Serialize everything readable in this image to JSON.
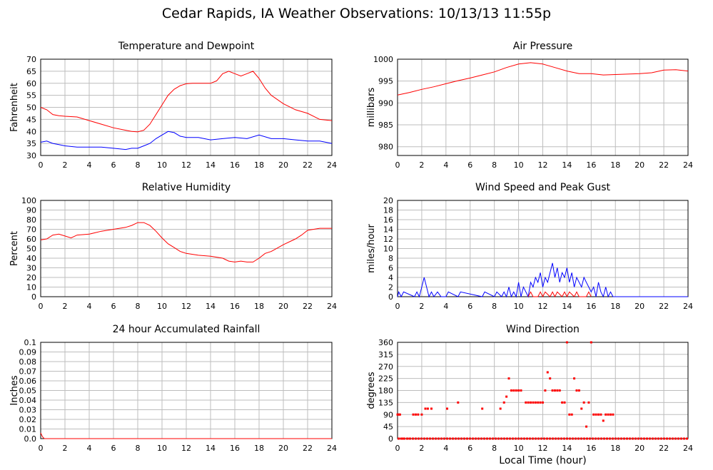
{
  "page_title": "Cedar Rapids, IA Weather Observations: 10/13/13 11:55p",
  "x_axis_label": "Local Time (hour)",
  "colors": {
    "red": "#ff0000",
    "blue": "#0000ff",
    "grid": "#bdbdbd"
  },
  "chart_data": [
    {
      "id": "temp",
      "type": "line",
      "title": "Temperature and Dewpoint",
      "ylabel": "Fahrenheit",
      "xlabel": "",
      "xlim": [
        0,
        24
      ],
      "ylim": [
        30,
        70
      ],
      "x_ticks": [
        "0",
        "2",
        "4",
        "6",
        "8",
        "10",
        "12",
        "14",
        "16",
        "18",
        "20",
        "22",
        "24"
      ],
      "y_ticks": [
        "30",
        "35",
        "40",
        "45",
        "50",
        "55",
        "60",
        "65",
        "70"
      ],
      "series": [
        {
          "color": "#ff0000",
          "x": [
            0,
            0.5,
            1,
            1.5,
            2,
            3,
            4,
            5,
            6,
            7,
            7.5,
            8,
            8.5,
            9,
            9.5,
            10,
            10.5,
            11,
            11.5,
            12,
            12.5,
            13,
            14,
            14.5,
            15,
            15.5,
            16,
            16.5,
            17,
            17.5,
            18,
            18.5,
            19,
            20,
            21,
            22,
            23,
            24
          ],
          "y": [
            50,
            49,
            47,
            46.5,
            46.3,
            46,
            44.5,
            43,
            41.5,
            40.5,
            40,
            39.8,
            40.5,
            43,
            47,
            51,
            55,
            57.5,
            59,
            59.8,
            60,
            60,
            60,
            61,
            64,
            65,
            64,
            63,
            64,
            65,
            62,
            58,
            55,
            51.5,
            49,
            47.5,
            45,
            44.5
          ]
        },
        {
          "color": "#0000ff",
          "x": [
            0,
            0.5,
            1,
            1.5,
            2,
            3,
            4,
            5,
            6,
            7,
            7.5,
            8,
            8.5,
            9,
            9.5,
            10,
            10.5,
            11,
            11.5,
            12,
            13,
            14,
            15,
            16,
            17,
            18,
            19,
            20,
            21,
            22,
            23,
            24
          ],
          "y": [
            35.5,
            36,
            35,
            34.5,
            34,
            33.5,
            33.5,
            33.5,
            33,
            32.5,
            33,
            33,
            34,
            35,
            37,
            38.5,
            40,
            39.5,
            38,
            37.5,
            37.5,
            36.5,
            37,
            37.5,
            37,
            38.5,
            37,
            37,
            36.5,
            36,
            36,
            35
          ]
        }
      ]
    },
    {
      "id": "pressure",
      "type": "line",
      "title": "Air Pressure",
      "ylabel": "millibars",
      "xlabel": "",
      "xlim": [
        0,
        24
      ],
      "ylim": [
        978,
        1000
      ],
      "x_ticks": [
        "0",
        "2",
        "4",
        "6",
        "8",
        "10",
        "12",
        "14",
        "16",
        "18",
        "20",
        "22",
        "24"
      ],
      "y_ticks": [
        "980",
        "985",
        "990",
        "995",
        "1000"
      ],
      "y_tick_values": [
        980,
        985,
        990,
        995,
        1000
      ],
      "series": [
        {
          "color": "#ff0000",
          "x": [
            0,
            1,
            2,
            3,
            4,
            5,
            6,
            7,
            8,
            9,
            10,
            11,
            12,
            13,
            14,
            15,
            16,
            17,
            18,
            19,
            20,
            21,
            22,
            23,
            24
          ],
          "y": [
            991.8,
            992.4,
            993.1,
            993.7,
            994.4,
            995.1,
            995.7,
            996.4,
            997.1,
            998.1,
            998.9,
            999.2,
            998.9,
            998.1,
            997.3,
            996.7,
            996.7,
            996.4,
            996.5,
            996.6,
            996.7,
            996.9,
            997.5,
            997.6,
            997.3
          ]
        }
      ]
    },
    {
      "id": "humidity",
      "type": "line",
      "title": "Relative Humidity",
      "ylabel": "Percent",
      "xlabel": "",
      "xlim": [
        0,
        24
      ],
      "ylim": [
        0,
        100
      ],
      "x_ticks": [
        "0",
        "2",
        "4",
        "6",
        "8",
        "10",
        "12",
        "14",
        "16",
        "18",
        "20",
        "22",
        "24"
      ],
      "y_ticks": [
        "0",
        "10",
        "20",
        "30",
        "40",
        "50",
        "60",
        "70",
        "80",
        "90",
        "100"
      ],
      "series": [
        {
          "color": "#ff0000",
          "x": [
            0,
            0.5,
            1,
            1.5,
            2,
            2.5,
            3,
            4,
            5,
            6,
            7,
            7.5,
            8,
            8.5,
            9,
            9.5,
            10,
            10.5,
            11,
            11.5,
            12,
            13,
            14,
            15,
            15.5,
            16,
            16.5,
            17,
            17.5,
            18,
            18.5,
            19,
            20,
            21,
            21.5,
            22,
            23,
            24
          ],
          "y": [
            59,
            60,
            64,
            65,
            63,
            61,
            64,
            65,
            68,
            70,
            72,
            74,
            77,
            77,
            74,
            68,
            61,
            55,
            51,
            47,
            45,
            43,
            42,
            40,
            37,
            36,
            37,
            36,
            36,
            40,
            45,
            47,
            54,
            60,
            64,
            69,
            71,
            71
          ]
        }
      ]
    },
    {
      "id": "wind",
      "type": "line",
      "title": "Wind Speed and Peak Gust",
      "ylabel": "miles/hour",
      "xlabel": "",
      "xlim": [
        0,
        24
      ],
      "ylim": [
        0,
        20
      ],
      "x_ticks": [
        "0",
        "2",
        "4",
        "6",
        "8",
        "10",
        "12",
        "14",
        "16",
        "18",
        "20",
        "22",
        "24"
      ],
      "y_ticks": [
        "0",
        "2",
        "4",
        "6",
        "8",
        "10",
        "12",
        "14",
        "16",
        "18",
        "20"
      ],
      "series": [
        {
          "color": "#0000ff",
          "x": [
            0,
            0.1,
            0.3,
            0.5,
            1.4,
            1.6,
            1.8,
            2.0,
            2.2,
            2.4,
            2.6,
            2.8,
            3.0,
            3.3,
            3.6,
            4.0,
            4.2,
            5.0,
            5.2,
            7.0,
            7.2,
            8.0,
            8.2,
            8.6,
            8.8,
            9.0,
            9.2,
            9.4,
            9.6,
            9.8,
            10.0,
            10.2,
            10.4,
            10.6,
            10.8,
            11.0,
            11.2,
            11.4,
            11.6,
            11.8,
            12.0,
            12.2,
            12.4,
            12.6,
            12.8,
            13.0,
            13.2,
            13.4,
            13.6,
            13.8,
            14.0,
            14.2,
            14.4,
            14.6,
            14.8,
            15.0,
            15.2,
            15.4,
            15.6,
            15.8,
            16.0,
            16.2,
            16.4,
            16.6,
            16.8,
            17.0,
            17.2,
            17.4,
            17.6,
            17.8,
            24
          ],
          "y": [
            0,
            1,
            0,
            1,
            0,
            1,
            0,
            2,
            4,
            2,
            0,
            1,
            0,
            1,
            0,
            0,
            1,
            0,
            1,
            0,
            1,
            0,
            1,
            0,
            1,
            0,
            2,
            0,
            1,
            0,
            3,
            0,
            2,
            1,
            0,
            3,
            2,
            4,
            3,
            5,
            2,
            4,
            3,
            5,
            7,
            4,
            6,
            3,
            5,
            4,
            6,
            3,
            5,
            2,
            4,
            3,
            2,
            4,
            3,
            2,
            1,
            2,
            0,
            3,
            1,
            0,
            2,
            0,
            1,
            0,
            0
          ]
        },
        {
          "color": "#ff0000",
          "x": [
            10.8,
            11.0,
            11.2,
            11.6,
            11.8,
            12.0,
            12.2,
            12.6,
            12.8,
            13.0,
            13.2,
            13.6,
            13.8,
            14.0,
            14.2,
            14.6,
            14.8,
            15.0,
            15.2,
            15.6,
            15.8,
            16.0
          ],
          "y": [
            0,
            1,
            0,
            0,
            1,
            0,
            1,
            0,
            1,
            0,
            1,
            0,
            1,
            0,
            1,
            0,
            1,
            0,
            0,
            0,
            1,
            0
          ]
        }
      ]
    },
    {
      "id": "rain",
      "type": "line",
      "title": "24 hour Accumulated Rainfall",
      "ylabel": "Inches",
      "xlabel": "",
      "xlim": [
        0,
        24
      ],
      "ylim": [
        0,
        0.1
      ],
      "x_ticks": [
        "0",
        "2",
        "4",
        "6",
        "8",
        "10",
        "12",
        "14",
        "16",
        "18",
        "20",
        "22",
        "24"
      ],
      "y_ticks": [
        "0.0",
        "0.01",
        "0.02",
        "0.03",
        "0.04",
        "0.05",
        "0.06",
        "0.07",
        "0.08",
        "0.09",
        "0.1"
      ],
      "series": [
        {
          "color": "#ff0000",
          "x": [
            0,
            0.15,
            0.3,
            24
          ],
          "y": [
            0.006,
            0.002,
            0,
            0
          ]
        }
      ]
    },
    {
      "id": "direction",
      "type": "scatter",
      "title": "Wind Direction",
      "ylabel": "degrees",
      "xlabel": "Local Time (hour)",
      "xlim": [
        0,
        24
      ],
      "ylim": [
        0,
        360
      ],
      "x_ticks": [
        "0",
        "2",
        "4",
        "6",
        "8",
        "10",
        "12",
        "14",
        "16",
        "18",
        "20",
        "22",
        "24"
      ],
      "y_ticks": [
        "0",
        "45",
        "90",
        "135",
        "180",
        "225",
        "270",
        "315",
        "360"
      ],
      "y_tick_values": [
        0,
        45,
        90,
        135,
        180,
        225,
        270,
        315,
        360
      ],
      "series": [
        {
          "color": "#ff0000",
          "x": [
            0.0,
            0.1,
            0.2,
            0.3,
            0.5,
            1.0,
            1.3,
            1.5,
            1.7,
            2.0,
            2.3,
            2.5,
            2.8,
            4.1,
            5.0,
            7.0,
            8.5,
            8.8,
            9.0,
            9.2,
            9.4,
            9.6,
            9.8,
            10.0,
            10.2,
            10.6,
            10.8,
            11.0,
            11.2,
            11.4,
            11.6,
            11.8,
            12.0,
            12.2,
            12.4,
            12.6,
            12.8,
            13.0,
            13.2,
            13.4,
            13.6,
            13.8,
            14.0,
            14.2,
            14.4,
            14.6,
            14.8,
            15.0,
            15.2,
            15.4,
            15.6,
            15.8,
            16.0,
            16.2,
            16.4,
            16.6,
            16.8,
            17.0,
            17.2,
            17.4,
            17.6,
            17.8
          ],
          "y": [
            90,
            90,
            90,
            0,
            0,
            0,
            90,
            90,
            90,
            90,
            112,
            112,
            112,
            112,
            135,
            112,
            112,
            135,
            157,
            225,
            180,
            180,
            180,
            180,
            180,
            135,
            135,
            135,
            135,
            135,
            135,
            135,
            135,
            180,
            248,
            225,
            180,
            180,
            180,
            180,
            135,
            135,
            360,
            90,
            90,
            225,
            180,
            180,
            112,
            135,
            45,
            135,
            360,
            90,
            90,
            90,
            90,
            67,
            90,
            90,
            90,
            90
          ]
        }
      ],
      "zero_band": {
        "from": 0,
        "to": 24,
        "value": 0
      }
    }
  ]
}
